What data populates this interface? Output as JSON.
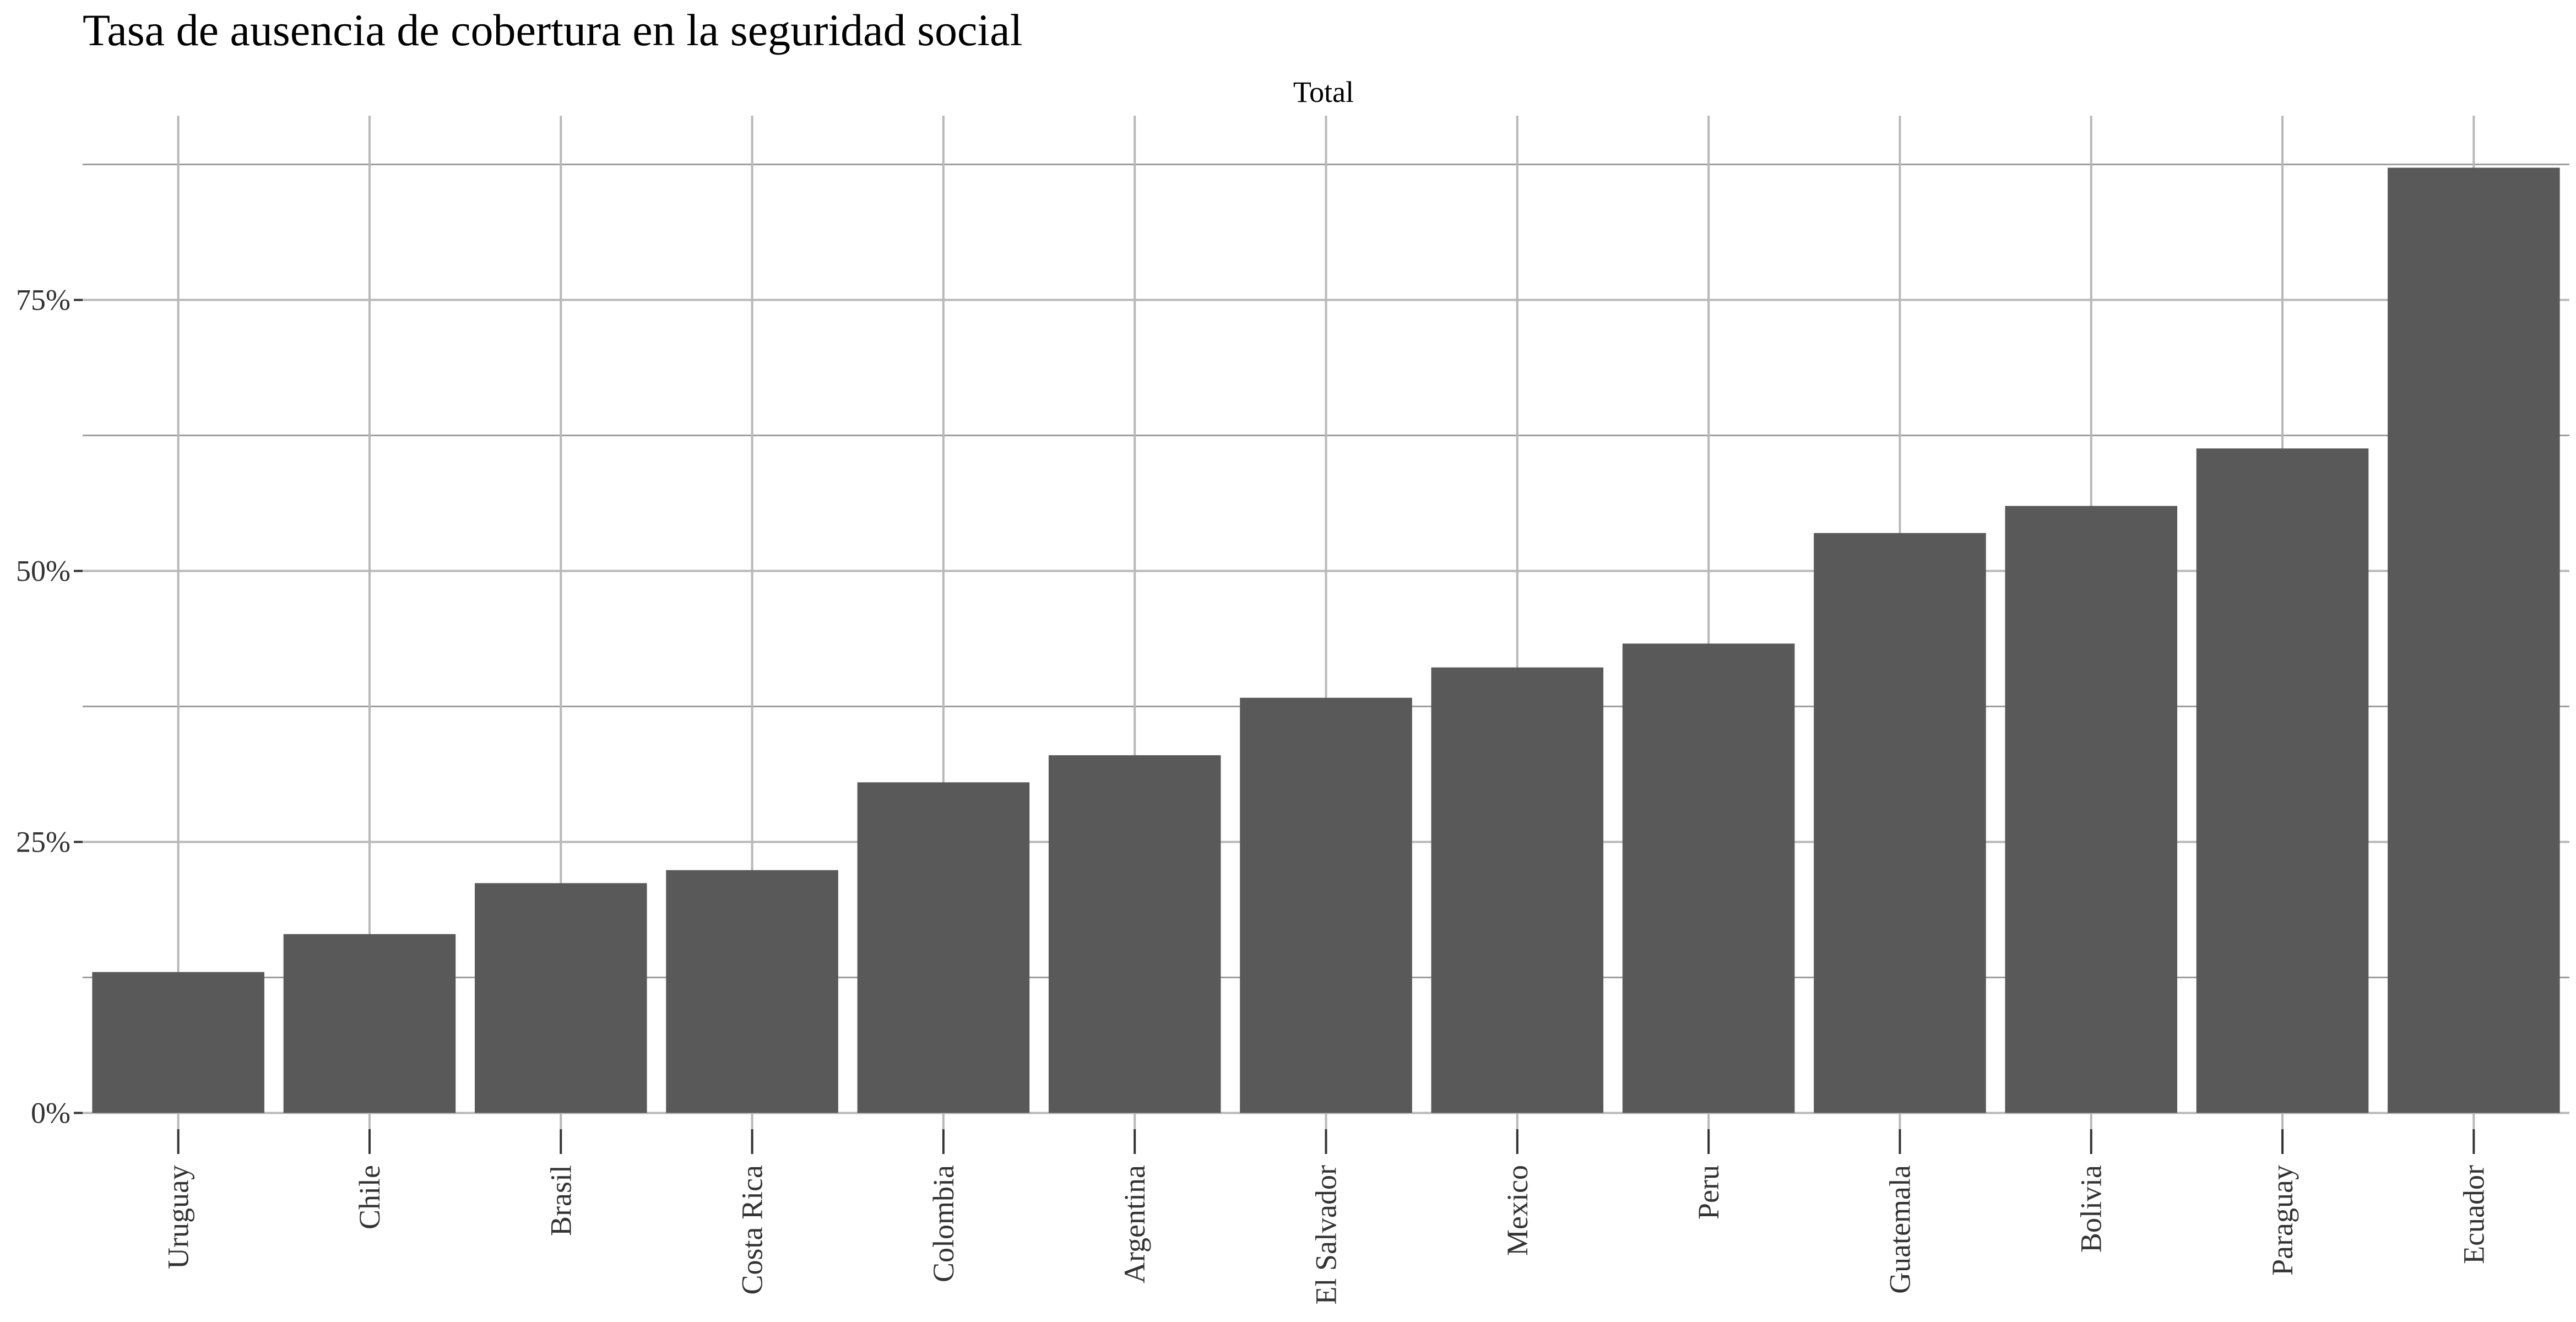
{
  "chart_data": {
    "type": "bar",
    "title": "Tasa de ausencia de cobertura en la seguridad social",
    "facet_label": "Total",
    "categories": [
      "Uruguay",
      "Chile",
      "Brasil",
      "Costa Rica",
      "Colombia",
      "Argentina",
      "El Salvador",
      "Mexico",
      "Peru",
      "Guatemala",
      "Bolivia",
      "Paraguay",
      "Ecuador"
    ],
    "values": [
      13.0,
      16.5,
      21.2,
      22.4,
      30.5,
      33.0,
      38.3,
      41.1,
      43.3,
      53.5,
      56.0,
      61.3,
      87.2
    ],
    "y_ticks": [
      0,
      25,
      50,
      75
    ],
    "y_tick_labels": [
      "0%",
      "25%",
      "50%",
      "75%"
    ],
    "ylim": [
      -1.5,
      92
    ],
    "grid": true,
    "legend": "none",
    "xlabel": "",
    "ylabel": "",
    "bar_color": "#595959",
    "grid_major_color": "#b8b8b8",
    "grid_minor_color": "#9e9e9e"
  }
}
